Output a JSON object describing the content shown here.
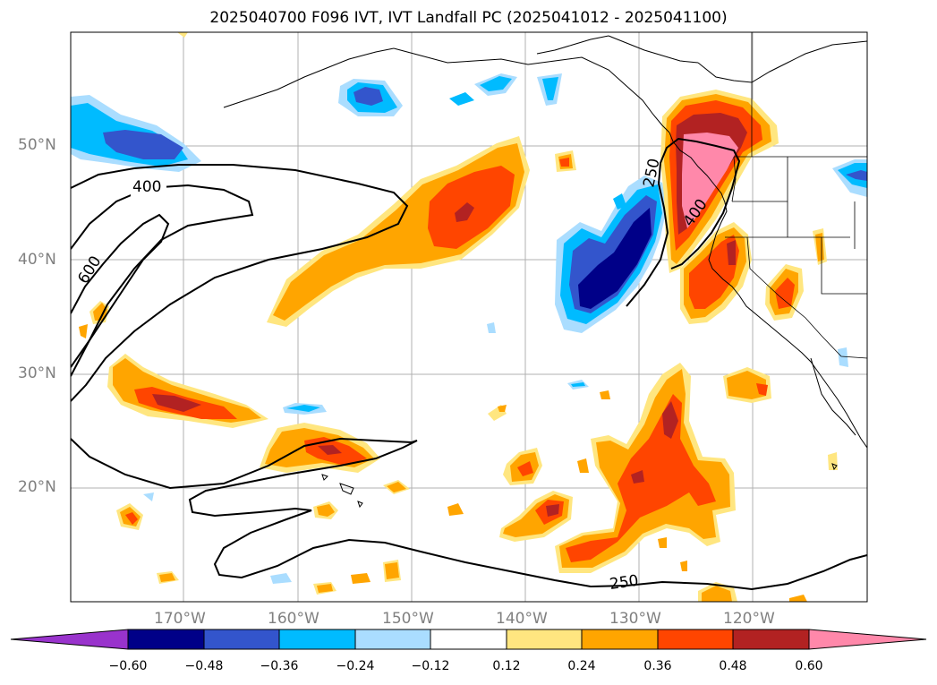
{
  "title": "2025040700 F096 IVT, IVT Landfall PC (2025041012 - 2025041100)",
  "lat_labels": [
    "50°N",
    "40°N",
    "30°N",
    "20°N"
  ],
  "lon_labels": [
    "170°W",
    "160°W",
    "150°W",
    "140°W",
    "130°W",
    "120°W"
  ],
  "contour_labels": [
    "400",
    "600",
    "250",
    "400",
    "250"
  ],
  "colorbar": {
    "ticks": [
      "−0.60",
      "−0.48",
      "−0.36",
      "−0.24",
      "−0.12",
      "0.12",
      "0.24",
      "0.36",
      "0.48",
      "0.60"
    ],
    "colors": [
      "#9933cc",
      "#000088",
      "#3355cc",
      "#00bbff",
      "#aaddff",
      "#ffffff",
      "#ffe680",
      "#ffa500",
      "#ff4500",
      "#b22222",
      "#ff88aa"
    ]
  },
  "map": {
    "projection": "cylindrical",
    "extent": {
      "lon_min": -180,
      "lon_max": -110,
      "lat_min": 10,
      "lat_max": 60
    }
  }
}
